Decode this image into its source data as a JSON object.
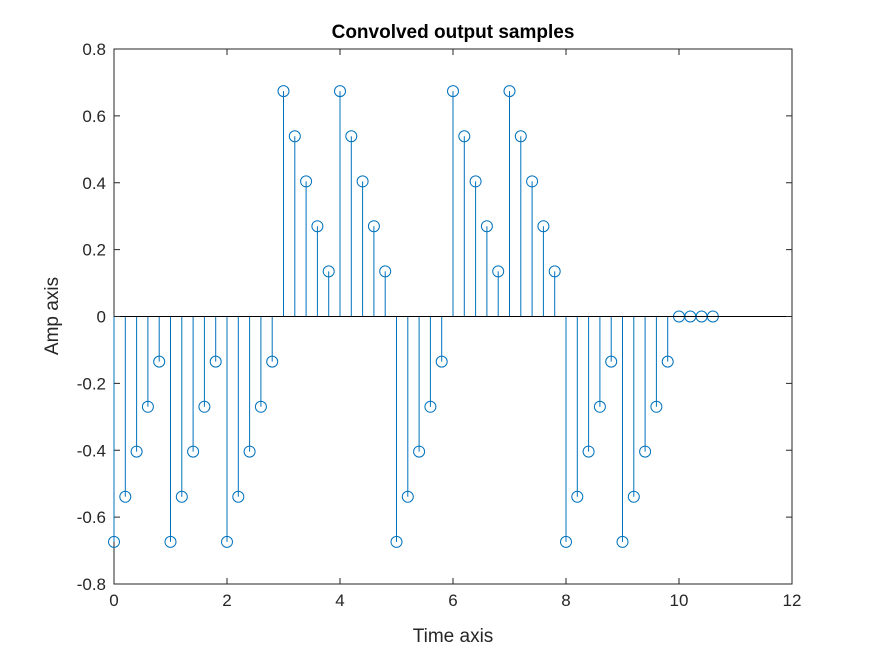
{
  "chart_data": {
    "type": "stem",
    "title": "Convolved output samples",
    "xlabel": "Time axis",
    "ylabel": "Amp axis",
    "xlim": [
      0,
      12
    ],
    "ylim": [
      -0.8,
      0.8
    ],
    "xticks": [
      "0",
      "2",
      "4",
      "6",
      "8",
      "10",
      "12"
    ],
    "yticks": [
      "-0.8",
      "-0.6",
      "-0.4",
      "-0.2",
      "0",
      "0.2",
      "0.4",
      "0.6",
      "0.8"
    ],
    "grid": false,
    "colors": {
      "stem": "#0072BD",
      "axes": "#262626",
      "baseline": "#000000"
    },
    "series": [
      {
        "x": [
          0,
          0.2,
          0.4,
          0.6,
          0.8,
          1,
          1.2,
          1.4,
          1.6,
          1.8,
          2,
          2.2,
          2.4,
          2.6,
          2.8,
          3,
          3.2,
          3.4,
          3.6,
          3.8,
          4,
          4.2,
          4.4,
          4.6,
          4.8,
          5,
          5.2,
          5.4,
          5.6,
          5.8,
          6,
          6.2,
          6.4,
          6.6,
          6.8,
          7,
          7.2,
          7.4,
          7.6,
          7.8,
          8,
          8.2,
          8.4,
          8.6,
          8.8,
          9,
          9.2,
          9.4,
          9.6,
          9.8,
          10,
          10.2,
          10.4,
          10.6
        ],
        "y": [
          -0.674,
          -0.539,
          -0.404,
          -0.27,
          -0.135,
          -0.674,
          -0.539,
          -0.404,
          -0.27,
          -0.135,
          -0.674,
          -0.539,
          -0.404,
          -0.27,
          -0.135,
          0.674,
          0.539,
          0.404,
          0.27,
          0.135,
          0.674,
          0.539,
          0.404,
          0.27,
          0.135,
          -0.674,
          -0.539,
          -0.404,
          -0.27,
          -0.135,
          0.674,
          0.539,
          0.404,
          0.27,
          0.135,
          0.674,
          0.539,
          0.404,
          0.27,
          0.135,
          -0.674,
          -0.539,
          -0.404,
          -0.27,
          -0.135,
          -0.674,
          -0.539,
          -0.404,
          -0.27,
          -0.135,
          0,
          0,
          0,
          0
        ]
      }
    ]
  }
}
